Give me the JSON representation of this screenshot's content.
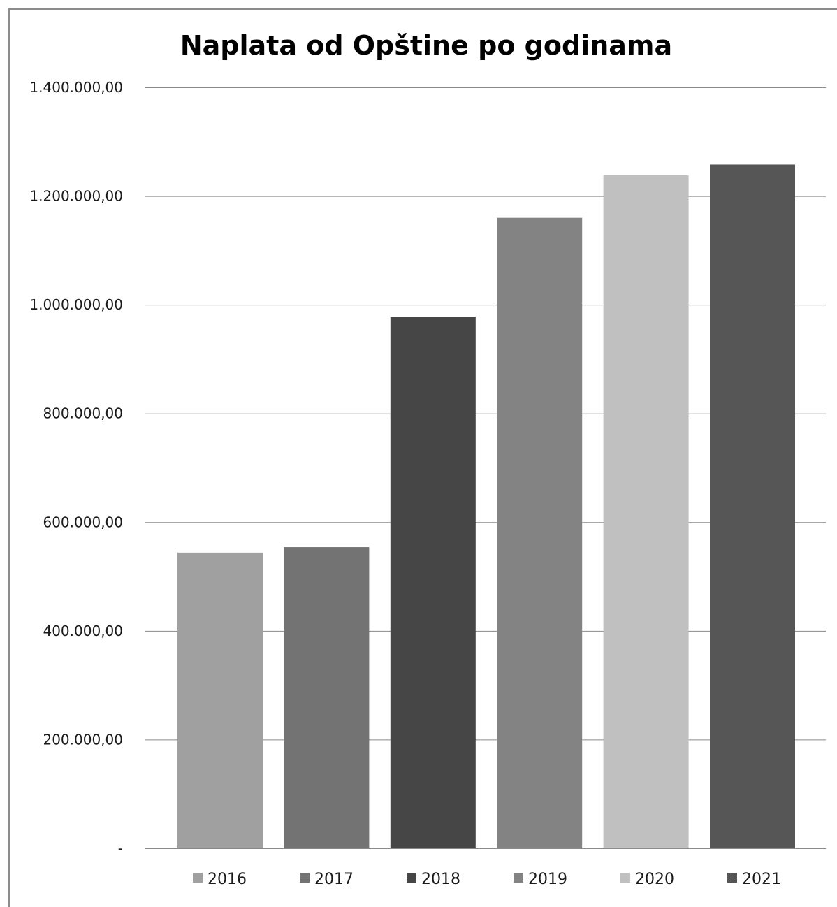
{
  "chart_data": {
    "type": "bar",
    "title": "Naplata od Opštine po godinama",
    "xlabel": "",
    "ylabel": "",
    "categories": [
      "2016",
      "2017",
      "2018",
      "2019",
      "2020",
      "2021"
    ],
    "values": [
      544000,
      554000,
      978000,
      1160000,
      1238000,
      1258000
    ],
    "colors": [
      "#a0a0a0",
      "#737373",
      "#464646",
      "#838383",
      "#c0c0c0",
      "#565656"
    ],
    "ylim": [
      0,
      1400000
    ],
    "yticks": [
      0,
      200000,
      400000,
      600000,
      800000,
      1000000,
      1200000,
      1400000
    ],
    "ytick_labels": [
      "-",
      "200.000,00",
      "400.000,00",
      "600.000,00",
      "800.000,00",
      "1.000.000,00",
      "1.200.000,00",
      "1.400.000,00"
    ],
    "grid": true,
    "legend_position": "bottom"
  }
}
